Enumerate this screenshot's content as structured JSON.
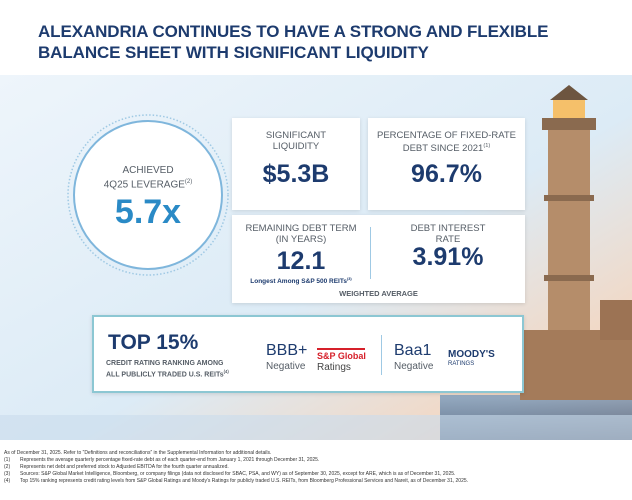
{
  "header": {
    "title_lines": [
      "ALEXANDRIA CONTINUES TO HAVE A STRONG AND FLEXIBLE",
      "BALANCE SHEET WITH SIGNIFICANT LIQUIDITY"
    ]
  },
  "leverage": {
    "label_lines": [
      "ACHIEVED",
      "4Q25 LEVERAGE"
    ],
    "note": "(2)",
    "value": "5.7x"
  },
  "liquidity": {
    "label_lines": [
      "SIGNIFICANT",
      "LIQUIDITY"
    ],
    "value": "$5.3B"
  },
  "fixed_rate": {
    "label_lines": [
      "PERCENTAGE OF FIXED-RATE",
      "DEBT SINCE 2021"
    ],
    "note": "(1)",
    "value": "96.7%"
  },
  "debt_term": {
    "label_lines": [
      "REMAINING DEBT TERM",
      "(IN YEARS)"
    ],
    "value": "12.1",
    "caption": "Longest Among S&P 500 REITs",
    "note": "(3)"
  },
  "interest_rate": {
    "label_lines": [
      "DEBT INTEREST",
      "RATE"
    ],
    "value": "3.91%"
  },
  "weighted_average": "WEIGHTED AVERAGE",
  "credit": {
    "headline": "TOP 15%",
    "caption_lines": [
      "CREDIT RATING RANKING AMONG",
      "ALL PUBLICLY TRADED U.S. REITs"
    ],
    "note": "(4)",
    "ratings": [
      {
        "rating": "BBB+",
        "outlook": "Negative",
        "agency": "S&P Global",
        "agency_sub": "Ratings"
      },
      {
        "rating": "Baa1",
        "outlook": "Negative",
        "agency": "MOODY'S",
        "agency_sub": "RATINGS"
      }
    ]
  },
  "footnotes": {
    "intro": "As of December 31, 2025. Refer to “Definitions and reconciliations” in the Supplemental Information for additional details.",
    "notes": [
      {
        "marker": "(1)",
        "text": "Represents the average quarterly percentage fixed-rate debt as of each quarter-end from January 1, 2021 through December 31, 2025."
      },
      {
        "marker": "(2)",
        "text": "Represents net debt and preferred stock to Adjusted EBITDA for the fourth quarter annualized."
      },
      {
        "marker": "(3)",
        "text": "Sources: S&P Global Market Intelligence, Bloomberg, or company filings (data not disclosed for SBAC, PSA, and WY) as of September 30, 2025, except for ARE, which is as of December 31, 2025."
      },
      {
        "marker": "(4)",
        "text": "Top 15% ranking represents credit rating levels from S&P Global Ratings and Moody's Ratings for publicly traded U.S. REITs, from Bloomberg Professional Services and Nareit, as of December 31, 2025."
      }
    ]
  }
}
